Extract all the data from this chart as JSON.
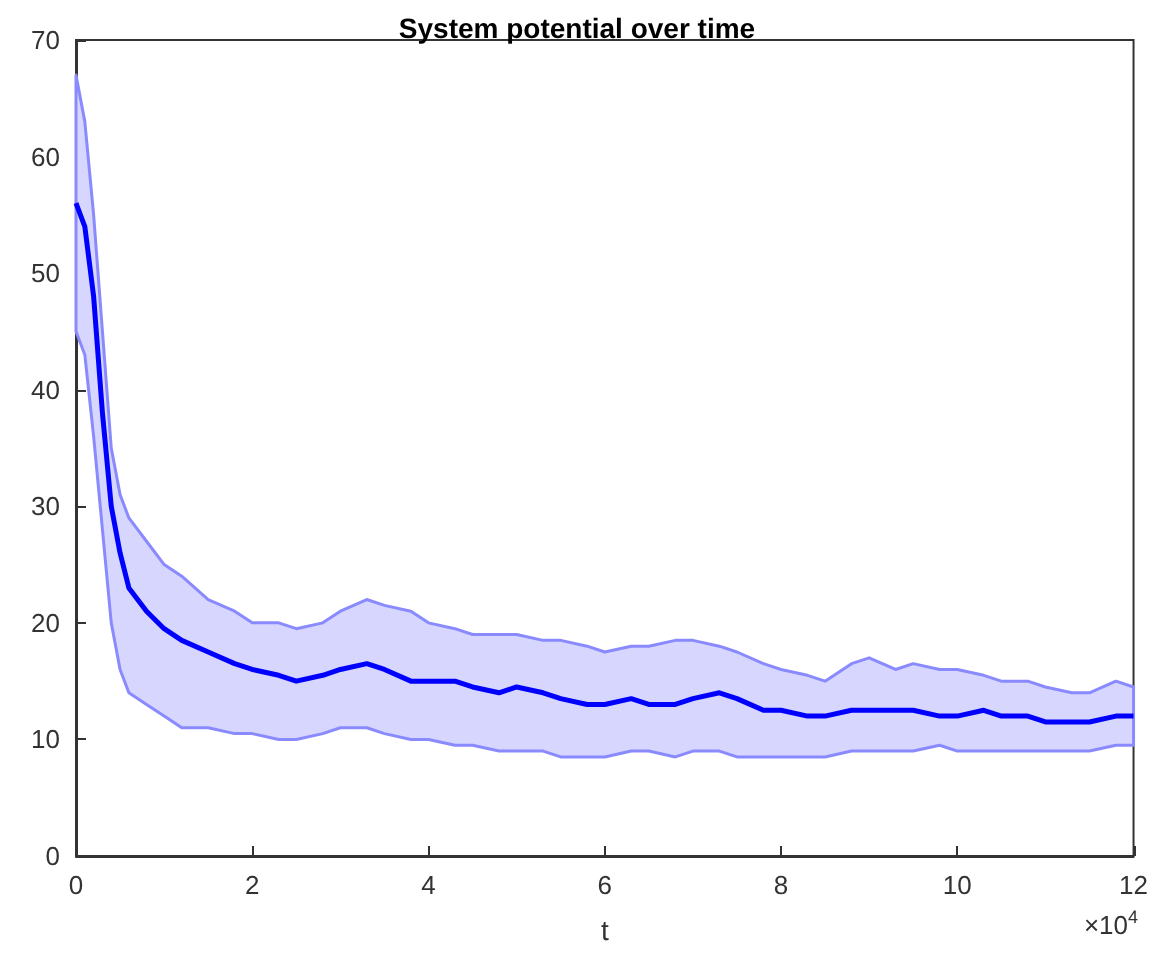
{
  "chart_data": {
    "type": "line",
    "title": "System potential over time",
    "xlabel": "t",
    "annotations": [
      "×10$^{4}$"
    ],
    "x": [
      0,
      0.1,
      0.2,
      0.3,
      0.4,
      0.5,
      0.6,
      0.8,
      1,
      1.2,
      1.5,
      1.8,
      2,
      2.3,
      2.5,
      2.8,
      3,
      3.3,
      3.5,
      3.8,
      4,
      4.3,
      4.5,
      4.8,
      5,
      5.3,
      5.5,
      5.8,
      6,
      6.3,
      6.5,
      6.8,
      7,
      7.3,
      7.5,
      7.8,
      8,
      8.3,
      8.5,
      8.8,
      9,
      9.3,
      9.5,
      9.8,
      10,
      10.3,
      10.5,
      10.8,
      11,
      11.3,
      11.5,
      11.8,
      12
    ],
    "series": [
      {
        "color": "#0000ff",
        "values": [
          56,
          54,
          48,
          38,
          30,
          26,
          23,
          21,
          19.5,
          18.5,
          17.5,
          16.5,
          16,
          15.5,
          15,
          15.5,
          16,
          16.5,
          16,
          15,
          15,
          15,
          14.5,
          14,
          14.5,
          14,
          13.5,
          13,
          13,
          13.5,
          13,
          13,
          13.5,
          14,
          13.5,
          12.5,
          12.5,
          12,
          12,
          12.5,
          12.5,
          12.5,
          12.5,
          12,
          12,
          12.5,
          12,
          12,
          11.5,
          11.5,
          11.5,
          12,
          12
        ],
        "upper": [
          67,
          63,
          55,
          45,
          35,
          31,
          29,
          27,
          25,
          24,
          22,
          21,
          20,
          20,
          19.5,
          20,
          21,
          22,
          21.5,
          21,
          20,
          19.5,
          19,
          19,
          19,
          18.5,
          18.5,
          18,
          17.5,
          18,
          18,
          18.5,
          18.5,
          18,
          17.5,
          16.5,
          16,
          15.5,
          15,
          16.5,
          17,
          16,
          16.5,
          16,
          16,
          15.5,
          15,
          15,
          14.5,
          14,
          14,
          15,
          14.5
        ],
        "lower": [
          45,
          43,
          36,
          28,
          20,
          16,
          14,
          13,
          12,
          11,
          11,
          10.5,
          10.5,
          10,
          10,
          10.5,
          11,
          11,
          10.5,
          10,
          10,
          9.5,
          9.5,
          9,
          9,
          9,
          8.5,
          8.5,
          8.5,
          9,
          9,
          8.5,
          9,
          9,
          8.5,
          8.5,
          8.5,
          8.5,
          8.5,
          9,
          9,
          9,
          9,
          9.5,
          9,
          9,
          9,
          9,
          9,
          9,
          9,
          9.5,
          9.5
        ]
      }
    ],
    "xlim": [
      0,
      12
    ],
    "xticks": [
      0,
      2,
      4,
      6,
      8,
      10,
      12
    ],
    "ylim": [
      0,
      70
    ],
    "yticks": [
      0,
      10,
      20,
      30,
      40,
      50,
      60,
      70
    ],
    "grid": false,
    "marker": "none",
    "line_style": "solid"
  }
}
